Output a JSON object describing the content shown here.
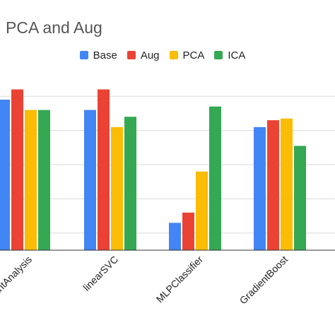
{
  "chart_data": {
    "type": "bar",
    "title": "PCA and Aug",
    "categories": [
      "LinearDiscriminantAnalysis",
      "linearSVC",
      "MLPClassifier",
      "GradientBoost"
    ],
    "series": [
      {
        "name": "Base",
        "color": "#4285F4",
        "values": [
          0.89,
          0.86,
          0.53,
          0.81
        ]
      },
      {
        "name": "Aug",
        "color": "#EA4335",
        "values": [
          0.92,
          0.92,
          0.56,
          0.83
        ]
      },
      {
        "name": "PCA",
        "color": "#FBBC04",
        "values": [
          0.86,
          0.81,
          0.68,
          0.835
        ]
      },
      {
        "name": "ICA",
        "color": "#34A853",
        "values": [
          0.86,
          0.84,
          0.87,
          0.755
        ]
      }
    ],
    "xlabel": "",
    "ylabel": "",
    "ylim": [
      0.45,
      0.95
    ],
    "gridlines": [
      0.5,
      0.6,
      0.7,
      0.8,
      0.9
    ],
    "grid": true,
    "legend_position": "top"
  }
}
